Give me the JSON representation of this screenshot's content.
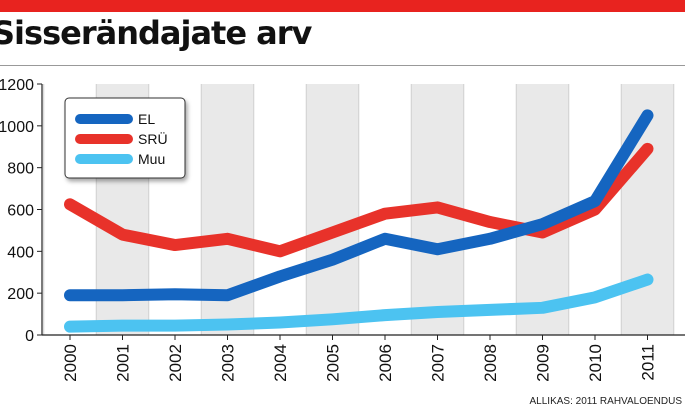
{
  "title": "Sisserändajate arv",
  "source": "ALLIKAS: 2011 RAHVALOENDUS",
  "colors": {
    "accent_bar": "#e8231f",
    "grid_band": "#e9e9e9",
    "EL": "#1565c0",
    "SRÜ": "#e8322a",
    "Muu": "#4cc3f1"
  },
  "chart_data": {
    "type": "line",
    "title": "Sisserändajate arv",
    "x": [
      "2000",
      "2001",
      "2002",
      "2003",
      "2004",
      "2005",
      "2006",
      "2007",
      "2008",
      "2009",
      "2010",
      "2011"
    ],
    "series": [
      {
        "name": "EL",
        "values": [
          190,
          190,
          195,
          190,
          280,
          360,
          460,
          410,
          460,
          530,
          640,
          1050
        ]
      },
      {
        "name": "SRÜ",
        "values": [
          625,
          480,
          430,
          460,
          400,
          490,
          580,
          610,
          540,
          490,
          600,
          890
        ]
      },
      {
        "name": "Muu",
        "values": [
          40,
          45,
          45,
          50,
          60,
          75,
          95,
          110,
          120,
          130,
          180,
          265
        ]
      }
    ],
    "yticks": [
      0,
      200,
      400,
      600,
      800,
      1000,
      1200
    ],
    "ylim": [
      0,
      1200
    ],
    "xlabel": "",
    "ylabel": "",
    "grid": "vertical bands",
    "legend": "top-left"
  }
}
